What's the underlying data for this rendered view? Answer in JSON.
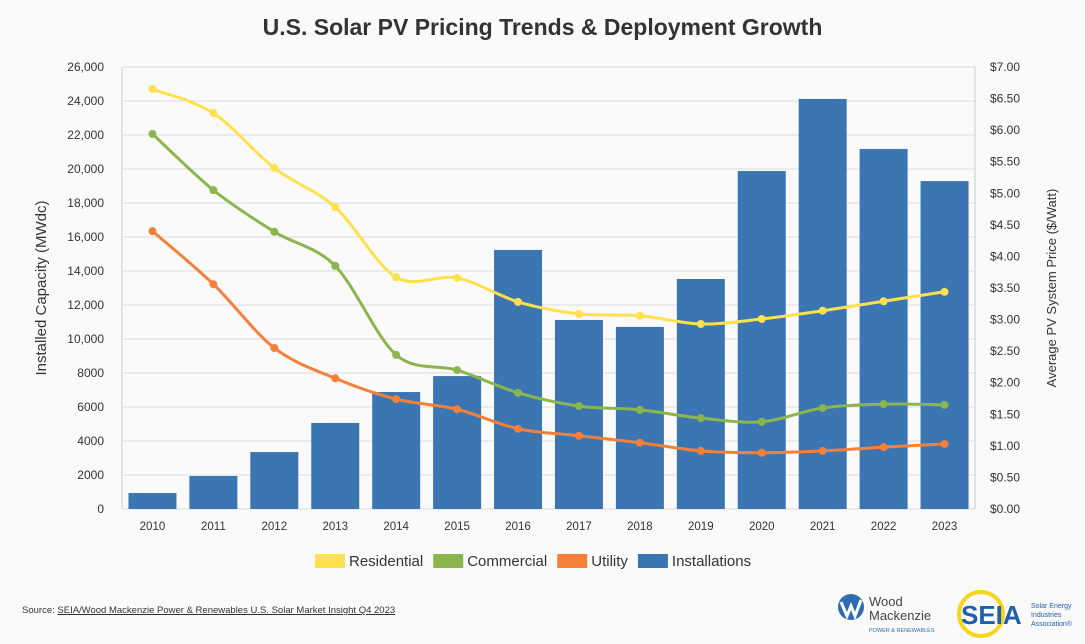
{
  "chart_data": {
    "type": "bar+line",
    "title": "U.S. Solar PV Pricing Trends & Deployment Growth",
    "categories": [
      "2010",
      "2011",
      "2012",
      "2013",
      "2014",
      "2015",
      "2016",
      "2017",
      "2018",
      "2019",
      "2020",
      "2021",
      "2022",
      "2023"
    ],
    "ylabel_left": "Installed Capacity (MWdc)",
    "ylabel_right": "Average PV System Price ($/Watt)",
    "ylim_left": [
      0,
      26000
    ],
    "ylim_right": [
      0,
      7
    ],
    "yticks_left": [
      "0",
      "2000",
      "4000",
      "6000",
      "8000",
      "10,000",
      "12,000",
      "14,000",
      "16,000",
      "18,000",
      "20,000",
      "22,000",
      "24,000",
      "26,000"
    ],
    "yticks_right": [
      "$0.00",
      "$0.50",
      "$1.00",
      "$1.50",
      "$2.00",
      "$2.50",
      "$3.00",
      "$3.50",
      "$4.00",
      "$4.50",
      "$5.00",
      "$5.50",
      "$6.00",
      "$6.50",
      "$7.00"
    ],
    "grid": "horizontal",
    "legend_placement": "bottom",
    "series": [
      {
        "name": "Residential",
        "type": "line",
        "axis": "right",
        "color": "#FFE14F",
        "values": [
          6.65,
          6.27,
          5.4,
          4.78,
          3.67,
          3.66,
          3.28,
          3.09,
          3.06,
          2.93,
          3.01,
          3.14,
          3.29,
          3.44
        ]
      },
      {
        "name": "Commercial",
        "type": "line",
        "axis": "right",
        "color": "#8BB54D",
        "values": [
          5.94,
          5.05,
          4.39,
          3.85,
          2.44,
          2.2,
          1.84,
          1.63,
          1.57,
          1.44,
          1.38,
          1.6,
          1.66,
          1.65
        ]
      },
      {
        "name": "Utility",
        "type": "line",
        "axis": "right",
        "color": "#F5803A",
        "values": [
          4.4,
          3.56,
          2.55,
          2.07,
          1.74,
          1.58,
          1.27,
          1.16,
          1.05,
          0.92,
          0.89,
          0.92,
          0.98,
          1.03
        ]
      },
      {
        "name": "Installations",
        "type": "bar",
        "axis": "left",
        "color": "#3B76B3",
        "values": [
          940,
          1940,
          3350,
          5060,
          6880,
          7820,
          15240,
          11120,
          10710,
          13530,
          19880,
          24120,
          21180,
          19290
        ]
      }
    ]
  },
  "source": {
    "prefix": "Source: ",
    "link": "SEIA/Wood Mackenzie Power & Renewables U.S. Solar Market Insight Q4 2023"
  },
  "logos": {
    "woodmac": {
      "line1": "Wood",
      "line2": "Mackenzie",
      "line3": "POWER & RENEWABLES"
    },
    "seia": {
      "mark": "SEIA",
      "l1": "Solar Energy",
      "l2": "Industries",
      "l3": "Association®"
    }
  }
}
